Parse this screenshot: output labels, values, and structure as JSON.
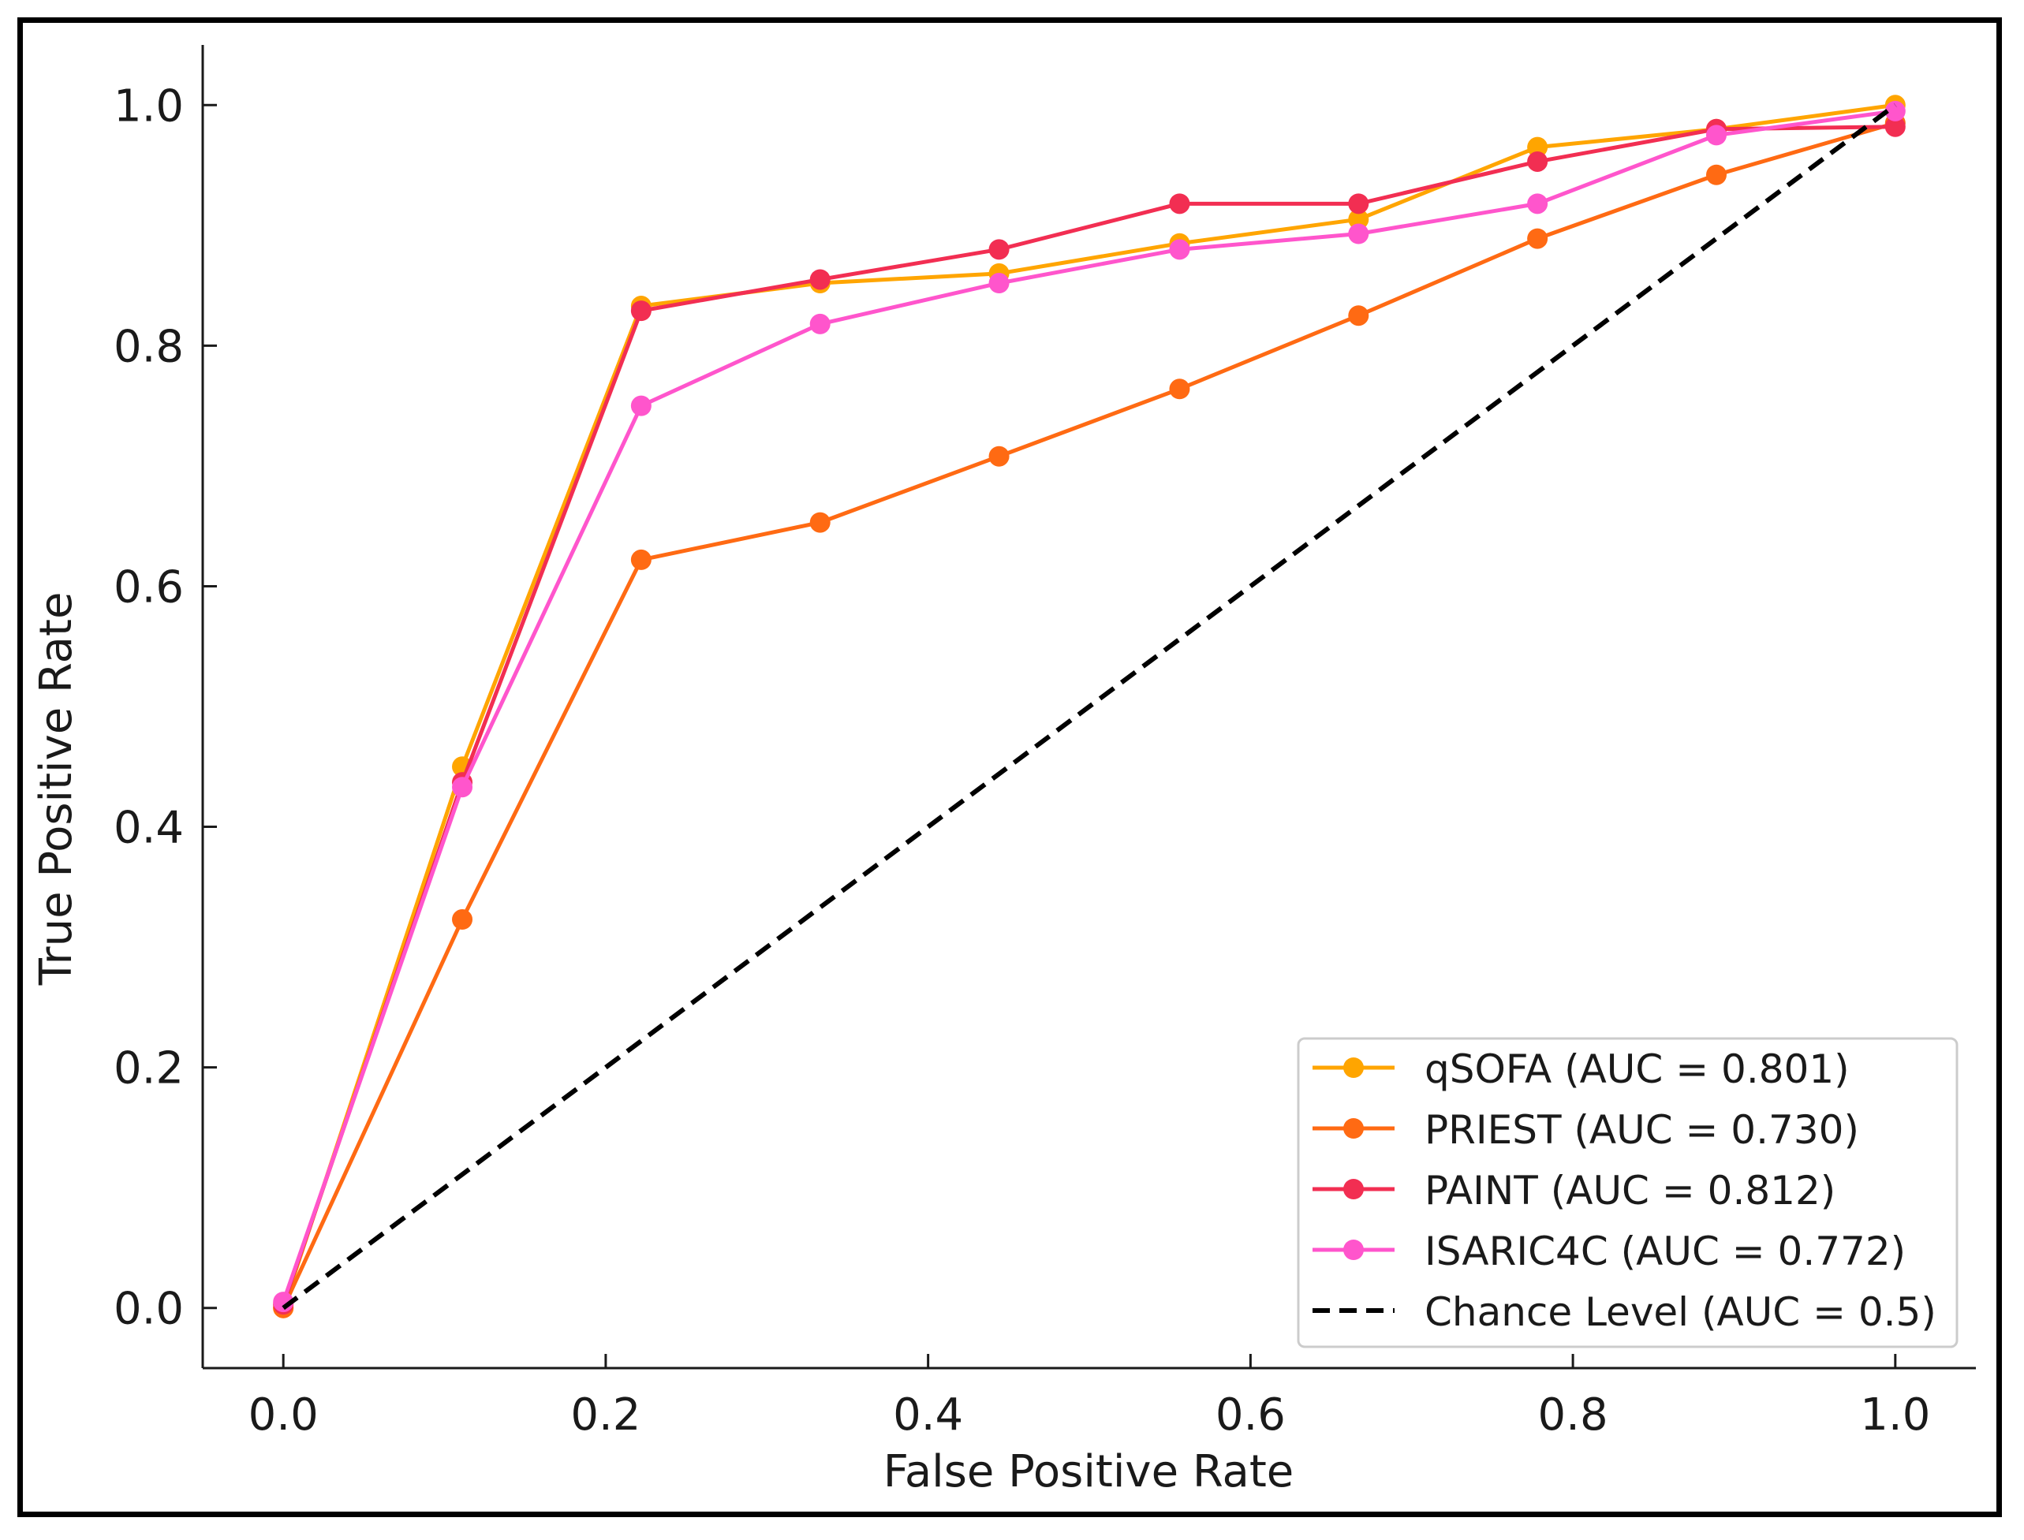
{
  "chart_data": {
    "type": "line",
    "title": "",
    "xlabel": "False Positive Rate",
    "ylabel": "True Positive Rate",
    "xlim": [
      -0.05,
      1.05
    ],
    "ylim": [
      -0.05,
      1.05
    ],
    "xticks": [
      0.0,
      0.2,
      0.4,
      0.6,
      0.8,
      1.0
    ],
    "yticks": [
      0.0,
      0.2,
      0.4,
      0.6,
      0.8,
      1.0
    ],
    "xtick_labels": [
      "0.0",
      "0.2",
      "0.4",
      "0.6",
      "0.8",
      "1.0"
    ],
    "ytick_labels": [
      "0.0",
      "0.2",
      "0.4",
      "0.6",
      "0.8",
      "1.0"
    ],
    "grid": false,
    "legend_position": "bottom-right",
    "x": [
      0.0,
      0.111,
      0.222,
      0.333,
      0.444,
      0.556,
      0.667,
      0.778,
      0.889,
      1.0
    ],
    "series": [
      {
        "name": "qSOFA (AUC = 0.801)",
        "color": "#FFA500",
        "values": [
          0.0,
          0.45,
          0.833,
          0.852,
          0.86,
          0.885,
          0.905,
          0.965,
          0.98,
          1.0
        ]
      },
      {
        "name": "PRIEST (AUC = 0.730)",
        "color": "#FF6A13",
        "values": [
          0.0,
          0.323,
          0.622,
          0.653,
          0.708,
          0.764,
          0.825,
          0.889,
          0.942,
          0.985
        ]
      },
      {
        "name": "PAINT (AUC = 0.812)",
        "color": "#F22E52",
        "values": [
          0.003,
          0.437,
          0.829,
          0.855,
          0.88,
          0.918,
          0.918,
          0.953,
          0.98,
          0.982
        ]
      },
      {
        "name": "ISARIC4C (AUC = 0.772)",
        "color": "#FF55CC",
        "values": [
          0.005,
          0.433,
          0.75,
          0.818,
          0.852,
          0.88,
          0.893,
          0.918,
          0.975,
          0.995
        ]
      }
    ],
    "reference_line": {
      "name": "Chance Level (AUC = 0.5)",
      "color": "#000000",
      "style": "dashed",
      "x": [
        0.0,
        1.0
      ],
      "y": [
        0.0,
        1.0
      ]
    }
  }
}
